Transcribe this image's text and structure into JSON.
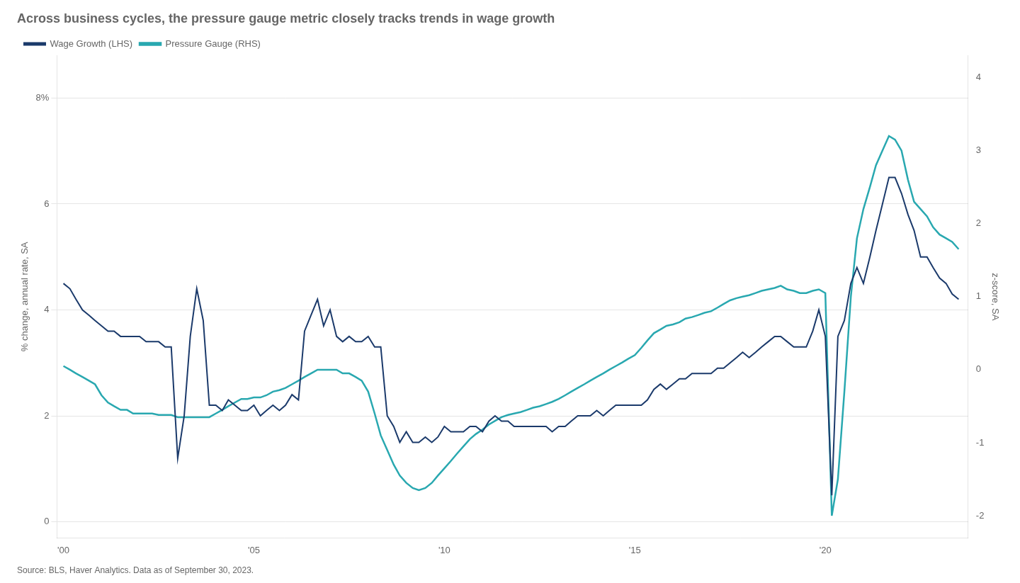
{
  "chart_data": {
    "type": "line",
    "title": "Across business cycles, the pressure gauge metric closely tracks trends in wage growth",
    "y_label": "% change, annual rate, SA",
    "y2_label": "z-score, SA",
    "source": "Source: BLS, Haver Analytics. Data as of September 30, 2023.",
    "x": [
      2000.0,
      2000.17,
      2000.33,
      2000.5,
      2000.67,
      2000.83,
      2001.0,
      2001.17,
      2001.33,
      2001.5,
      2001.67,
      2001.83,
      2002.0,
      2002.17,
      2002.33,
      2002.5,
      2002.67,
      2002.83,
      2003.0,
      2003.17,
      2003.33,
      2003.5,
      2003.67,
      2003.83,
      2004.0,
      2004.17,
      2004.33,
      2004.5,
      2004.67,
      2004.83,
      2005.0,
      2005.17,
      2005.33,
      2005.5,
      2005.67,
      2005.83,
      2006.0,
      2006.17,
      2006.33,
      2006.5,
      2006.67,
      2006.83,
      2007.0,
      2007.17,
      2007.33,
      2007.5,
      2007.67,
      2007.83,
      2008.0,
      2008.17,
      2008.33,
      2008.5,
      2008.67,
      2008.83,
      2009.0,
      2009.17,
      2009.33,
      2009.5,
      2009.67,
      2009.83,
      2010.0,
      2010.17,
      2010.33,
      2010.5,
      2010.67,
      2010.83,
      2011.0,
      2011.17,
      2011.33,
      2011.5,
      2011.67,
      2011.83,
      2012.0,
      2012.17,
      2012.33,
      2012.5,
      2012.67,
      2012.83,
      2013.0,
      2013.17,
      2013.33,
      2013.5,
      2013.67,
      2013.83,
      2014.0,
      2014.17,
      2014.33,
      2014.5,
      2014.67,
      2014.83,
      2015.0,
      2015.17,
      2015.33,
      2015.5,
      2015.67,
      2015.83,
      2016.0,
      2016.17,
      2016.33,
      2016.5,
      2016.67,
      2016.83,
      2017.0,
      2017.17,
      2017.33,
      2017.5,
      2017.67,
      2017.83,
      2018.0,
      2018.17,
      2018.33,
      2018.5,
      2018.67,
      2018.83,
      2019.0,
      2019.17,
      2019.33,
      2019.5,
      2019.67,
      2019.83,
      2020.0,
      2020.17,
      2020.33,
      2020.5,
      2020.67,
      2020.83,
      2021.0,
      2021.17,
      2021.33,
      2021.5,
      2021.67,
      2021.83,
      2022.0,
      2022.17,
      2022.33,
      2022.5,
      2022.67,
      2022.83,
      2023.0,
      2023.17,
      2023.33,
      2023.5
    ],
    "series": [
      {
        "name": "Wage Growth (LHS)",
        "color": "#1b3a6b",
        "axis": "y",
        "values": [
          4.5,
          4.4,
          4.2,
          4.0,
          3.9,
          3.8,
          3.7,
          3.6,
          3.6,
          3.5,
          3.5,
          3.5,
          3.5,
          3.4,
          3.4,
          3.4,
          3.3,
          3.3,
          1.2,
          2.0,
          3.5,
          4.4,
          3.8,
          2.2,
          2.2,
          2.1,
          2.3,
          2.2,
          2.1,
          2.1,
          2.2,
          2.0,
          2.1,
          2.2,
          2.1,
          2.2,
          2.4,
          2.3,
          3.6,
          3.9,
          4.2,
          3.7,
          4.0,
          3.5,
          3.4,
          3.5,
          3.4,
          3.4,
          3.5,
          3.3,
          3.3,
          2.0,
          1.8,
          1.5,
          1.7,
          1.5,
          1.5,
          1.6,
          1.5,
          1.6,
          1.8,
          1.7,
          1.7,
          1.7,
          1.8,
          1.8,
          1.7,
          1.9,
          2.0,
          1.9,
          1.9,
          1.8,
          1.8,
          1.8,
          1.8,
          1.8,
          1.8,
          1.7,
          1.8,
          1.8,
          1.9,
          2.0,
          2.0,
          2.0,
          2.1,
          2.0,
          2.1,
          2.2,
          2.2,
          2.2,
          2.2,
          2.2,
          2.3,
          2.5,
          2.6,
          2.5,
          2.6,
          2.7,
          2.7,
          2.8,
          2.8,
          2.8,
          2.8,
          2.9,
          2.9,
          3.0,
          3.1,
          3.2,
          3.1,
          3.2,
          3.3,
          3.4,
          3.5,
          3.5,
          3.4,
          3.3,
          3.3,
          3.3,
          3.6,
          4.0,
          3.5,
          0.5,
          3.5,
          3.8,
          4.5,
          4.8,
          4.5,
          5.0,
          5.5,
          6.0,
          6.5,
          6.5,
          6.2,
          5.8,
          5.5,
          5.0,
          5.0,
          4.8,
          4.6,
          4.5,
          4.3,
          4.2
        ]
      },
      {
        "name": "Pressure Gauge (RHS)",
        "color": "#29a8b0",
        "axis": "y2",
        "values": [
          0.05,
          0.0,
          -0.05,
          -0.1,
          -0.15,
          -0.2,
          -0.35,
          -0.45,
          -0.5,
          -0.55,
          -0.55,
          -0.6,
          -0.6,
          -0.6,
          -0.6,
          -0.62,
          -0.62,
          -0.62,
          -0.65,
          -0.65,
          -0.65,
          -0.65,
          -0.65,
          -0.65,
          -0.6,
          -0.55,
          -0.5,
          -0.45,
          -0.4,
          -0.4,
          -0.38,
          -0.38,
          -0.35,
          -0.3,
          -0.28,
          -0.25,
          -0.2,
          -0.15,
          -0.1,
          -0.05,
          0.0,
          0.0,
          0.0,
          0.0,
          -0.05,
          -0.05,
          -0.1,
          -0.15,
          -0.3,
          -0.6,
          -0.9,
          -1.1,
          -1.3,
          -1.45,
          -1.55,
          -1.62,
          -1.65,
          -1.62,
          -1.55,
          -1.45,
          -1.35,
          -1.25,
          -1.15,
          -1.05,
          -0.95,
          -0.88,
          -0.82,
          -0.75,
          -0.7,
          -0.65,
          -0.62,
          -0.6,
          -0.58,
          -0.55,
          -0.52,
          -0.5,
          -0.47,
          -0.44,
          -0.4,
          -0.35,
          -0.3,
          -0.25,
          -0.2,
          -0.15,
          -0.1,
          -0.05,
          0.0,
          0.05,
          0.1,
          0.15,
          0.2,
          0.3,
          0.4,
          0.5,
          0.55,
          0.6,
          0.62,
          0.65,
          0.7,
          0.72,
          0.75,
          0.78,
          0.8,
          0.85,
          0.9,
          0.95,
          0.98,
          1.0,
          1.02,
          1.05,
          1.08,
          1.1,
          1.12,
          1.15,
          1.1,
          1.08,
          1.05,
          1.05,
          1.08,
          1.1,
          1.05,
          -2.0,
          -1.5,
          -0.3,
          1.0,
          1.8,
          2.2,
          2.5,
          2.8,
          3.0,
          3.2,
          3.15,
          3.0,
          2.6,
          2.3,
          2.2,
          2.1,
          1.95,
          1.85,
          1.8,
          1.75,
          1.65
        ]
      }
    ],
    "xlim": [
      1999.83,
      2023.75
    ],
    "xticks": [
      {
        "value": 2000,
        "label": "'00"
      },
      {
        "value": 2005,
        "label": "'05"
      },
      {
        "value": 2010,
        "label": "'10"
      },
      {
        "value": 2015,
        "label": "'15"
      },
      {
        "value": 2020,
        "label": "'20"
      }
    ],
    "ylim": [
      -0.3,
      8.8
    ],
    "yticks": [
      0,
      2,
      4,
      6,
      {
        "value": 8,
        "label": "8%"
      }
    ],
    "y2lim": [
      -2.3,
      4.3
    ],
    "y2ticks": [
      -2,
      -1,
      0,
      1,
      2,
      3,
      4
    ],
    "grid": "y",
    "legend": "upper left"
  }
}
